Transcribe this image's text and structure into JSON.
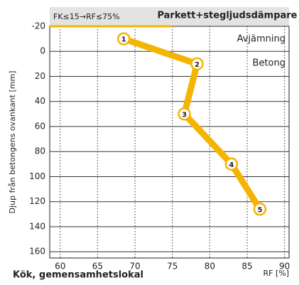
{
  "chart_data": {
    "type": "line",
    "title": "Kök, gemensamhetslokal",
    "header": "Parkett+stegljudsdämpare",
    "threshold_label": "FK≤15→RF≤75%",
    "threshold_x": 75,
    "layers": [
      "Avjämning",
      "Betong"
    ],
    "xlabel": "RF [%]",
    "ylabel": "Djup från betongens ovankant [mm]",
    "x": [
      68.5,
      78.3,
      76.6,
      82.9,
      86.7
    ],
    "series": [
      {
        "color": "#f5b400",
        "values": [
          -10,
          10,
          50,
          90,
          126
        ]
      }
    ],
    "point_labels": [
      "1",
      "2",
      "3",
      "4",
      "5"
    ],
    "xlim": [
      58.6,
      90.6
    ],
    "xticks": [
      60,
      65,
      70,
      75,
      80,
      85,
      90
    ],
    "ylim": [
      -20,
      165
    ],
    "yticks": [
      -20,
      0,
      20,
      40,
      60,
      80,
      100,
      120,
      140,
      160
    ],
    "grid": true
  }
}
